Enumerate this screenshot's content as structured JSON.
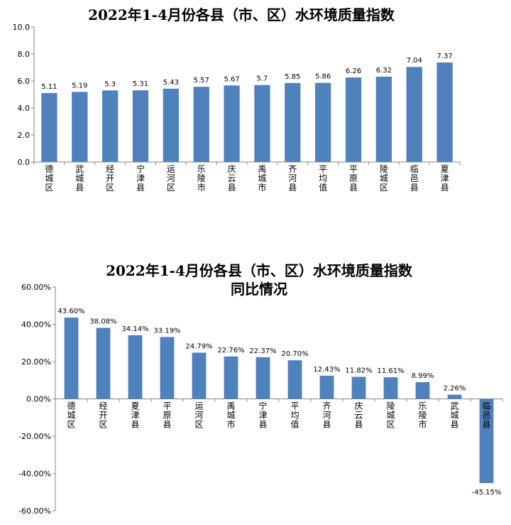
{
  "chart_data": [
    {
      "type": "bar",
      "title": "2022年1-4月份各县（市、区）水环境质量指数",
      "categories": [
        "德城区",
        "武城县",
        "经开区",
        "宁津县",
        "运河区",
        "乐陵市",
        "庆云县",
        "禹城市",
        "齐河县",
        "平均值",
        "平原县",
        "陵城区",
        "临邑县",
        "夏津县"
      ],
      "values": [
        5.11,
        5.19,
        5.3,
        5.31,
        5.43,
        5.57,
        5.67,
        5.7,
        5.85,
        5.86,
        6.26,
        6.32,
        7.04,
        7.37
      ],
      "value_labels": [
        "5.11",
        "5.19",
        "5.3",
        "5.31",
        "5.43",
        "5.57",
        "5.67",
        "5.7",
        "5.85",
        "5.86",
        "6.26",
        "6.32",
        "7.04",
        "7.37"
      ],
      "ylim": [
        0,
        10
      ],
      "yticks": [
        "0.0",
        "2.0",
        "4.0",
        "6.0",
        "8.0",
        "10.0"
      ],
      "bar_color": "#4f81bd",
      "grid": false,
      "legend": "none"
    },
    {
      "type": "bar",
      "title": "2022年1-4月份各县（市、区）水环境质量指数",
      "subtitle": "同比情况",
      "categories": [
        "德城区",
        "经开区",
        "夏津县",
        "平原县",
        "运河区",
        "禹城市",
        "宁津县",
        "平均值",
        "齐河县",
        "庆云县",
        "陵城区",
        "乐陵市",
        "武城县",
        "临邑县"
      ],
      "values": [
        43.6,
        38.08,
        34.14,
        33.19,
        24.79,
        22.76,
        22.37,
        20.7,
        12.43,
        11.82,
        11.61,
        8.99,
        2.26,
        -45.15
      ],
      "value_labels": [
        "43.60%",
        "38.08%",
        "34.14%",
        "33.19%",
        "24.79%",
        "22.76%",
        "22.37%",
        "20.70%",
        "12.43%",
        "11.82%",
        "11.61%",
        "8.99%",
        "2.26%",
        "-45.15%"
      ],
      "ylim": [
        -60,
        60
      ],
      "yticks": [
        "-60.00%",
        "-40.00%",
        "-20.00%",
        "0.00%",
        "20.00%",
        "40.00%",
        "60.00%"
      ],
      "bar_color": "#4f81bd",
      "grid": false,
      "legend": "none"
    }
  ]
}
